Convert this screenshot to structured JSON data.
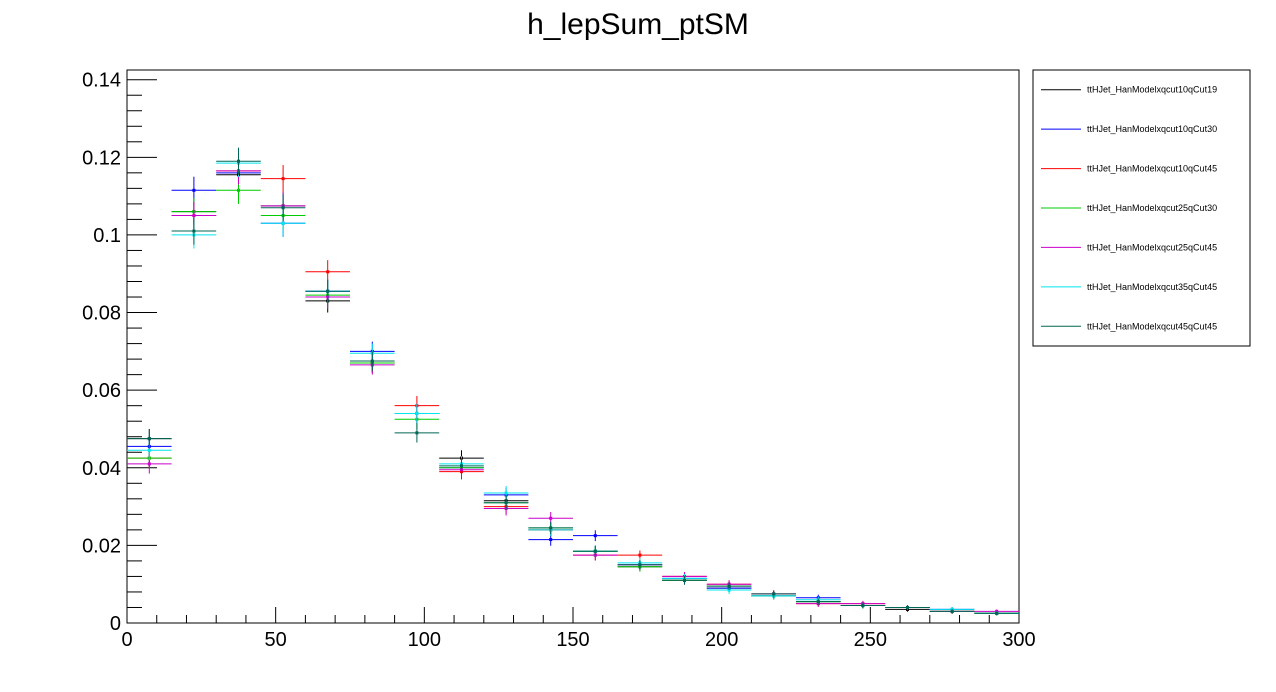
{
  "chart_data": {
    "type": "scatter",
    "title": "h_lepSum_ptSM",
    "xlabel": "",
    "ylabel": "",
    "xlim": [
      0,
      300
    ],
    "ylim": [
      0,
      0.1425
    ],
    "x_ticks": [
      "0",
      "50",
      "100",
      "150",
      "200",
      "250",
      "300"
    ],
    "y_ticks": [
      "0",
      "0.02",
      "0.04",
      "0.06",
      "0.08",
      "0.1",
      "0.12",
      "0.14"
    ],
    "grid": false,
    "legend_position": "top-right outside plot",
    "bin_width": 15,
    "x": [
      7.5,
      22.5,
      37.5,
      52.5,
      67.5,
      82.5,
      97.5,
      112.5,
      127.5,
      142.5,
      157.5,
      172.5,
      187.5,
      202.5,
      217.5,
      232.5,
      247.5,
      262.5,
      277.5,
      292.5
    ],
    "series": [
      {
        "name": "ttHJet_HanModelxqcut10qCut19",
        "color": "#000000",
        "values": [
          0.0475,
          0.106,
          0.1155,
          0.1075,
          0.083,
          0.067,
          0.054,
          0.0425,
          0.0315,
          0.024,
          0.0185,
          0.0145,
          0.011,
          0.009,
          0.007,
          0.0055,
          0.0045,
          0.0035,
          0.003,
          0.0025
        ],
        "errors": [
          0.0025,
          0.0035,
          0.0035,
          0.0035,
          0.003,
          0.0025,
          0.0025,
          0.002,
          0.0018,
          0.0016,
          0.0014,
          0.0012,
          0.0011,
          0.001,
          0.0009,
          0.0008,
          0.0007,
          0.0006,
          0.0006,
          0.0005
        ]
      },
      {
        "name": "ttHJet_HanModelxqcut10qCut30",
        "color": "#0000ff",
        "values": [
          0.0455,
          0.1115,
          0.116,
          0.103,
          0.0855,
          0.07,
          0.054,
          0.04,
          0.033,
          0.0215,
          0.0225,
          0.015,
          0.0115,
          0.009,
          0.007,
          0.0065,
          0.0045,
          0.004,
          0.0035,
          0.0025
        ],
        "errors": [
          0.0025,
          0.0035,
          0.0035,
          0.0035,
          0.003,
          0.0025,
          0.0025,
          0.002,
          0.0018,
          0.0016,
          0.0014,
          0.0012,
          0.0011,
          0.001,
          0.0009,
          0.0008,
          0.0007,
          0.0006,
          0.0006,
          0.0005
        ]
      },
      {
        "name": "ttHJet_HanModelxqcut10qCut45",
        "color": "#ff0000",
        "values": [
          0.0425,
          0.105,
          0.1165,
          0.1145,
          0.0905,
          0.067,
          0.056,
          0.039,
          0.03,
          0.024,
          0.0175,
          0.0175,
          0.012,
          0.01,
          0.0075,
          0.005,
          0.005,
          0.004,
          0.003,
          0.0025
        ],
        "errors": [
          0.0025,
          0.0035,
          0.0035,
          0.0035,
          0.003,
          0.0025,
          0.0025,
          0.002,
          0.0018,
          0.0016,
          0.0014,
          0.0012,
          0.0011,
          0.001,
          0.0009,
          0.0008,
          0.0007,
          0.0006,
          0.0006,
          0.0005
        ]
      },
      {
        "name": "ttHJet_HanModelxqcut25qCut30",
        "color": "#00cc00",
        "values": [
          0.0425,
          0.106,
          0.1115,
          0.105,
          0.0845,
          0.067,
          0.0525,
          0.04,
          0.031,
          0.0245,
          0.0185,
          0.0145,
          0.011,
          0.0095,
          0.007,
          0.0055,
          0.0045,
          0.004,
          0.003,
          0.0025
        ],
        "errors": [
          0.0025,
          0.0035,
          0.0035,
          0.0035,
          0.003,
          0.0025,
          0.0025,
          0.002,
          0.0018,
          0.0016,
          0.0014,
          0.0012,
          0.0011,
          0.001,
          0.0009,
          0.0008,
          0.0007,
          0.0006,
          0.0006,
          0.0005
        ]
      },
      {
        "name": "ttHJet_HanModelxqcut25qCut45",
        "color": "#cc00cc",
        "values": [
          0.041,
          0.105,
          0.1165,
          0.1075,
          0.084,
          0.0665,
          0.054,
          0.0395,
          0.0295,
          0.027,
          0.0175,
          0.015,
          0.012,
          0.01,
          0.0075,
          0.005,
          0.005,
          0.004,
          0.003,
          0.003
        ],
        "errors": [
          0.0025,
          0.0035,
          0.0035,
          0.0035,
          0.003,
          0.0025,
          0.0025,
          0.002,
          0.0018,
          0.0016,
          0.0014,
          0.0012,
          0.0011,
          0.001,
          0.0009,
          0.0008,
          0.0007,
          0.0006,
          0.0006,
          0.0005
        ]
      },
      {
        "name": "ttHJet_HanModelxqcut35qCut45",
        "color": "#00e5ee",
        "values": [
          0.0445,
          0.1,
          0.1185,
          0.103,
          0.0855,
          0.0695,
          0.054,
          0.041,
          0.0335,
          0.024,
          0.0185,
          0.0155,
          0.0115,
          0.0085,
          0.007,
          0.006,
          0.0045,
          0.004,
          0.0035,
          0.0025
        ],
        "errors": [
          0.0025,
          0.0035,
          0.0035,
          0.0035,
          0.003,
          0.0025,
          0.0025,
          0.002,
          0.0018,
          0.0016,
          0.0014,
          0.0012,
          0.0011,
          0.001,
          0.0009,
          0.0008,
          0.0007,
          0.0006,
          0.0006,
          0.0005
        ]
      },
      {
        "name": "ttHJet_HanModelxqcut45qCut45",
        "color": "#006655",
        "values": [
          0.0475,
          0.101,
          0.119,
          0.107,
          0.0855,
          0.0675,
          0.049,
          0.0405,
          0.031,
          0.0245,
          0.0185,
          0.015,
          0.011,
          0.0095,
          0.0075,
          0.0055,
          0.0045,
          0.004,
          0.003,
          0.0025
        ],
        "errors": [
          0.0025,
          0.0035,
          0.0035,
          0.0035,
          0.003,
          0.0025,
          0.0025,
          0.002,
          0.0018,
          0.0016,
          0.0014,
          0.0012,
          0.0011,
          0.001,
          0.0009,
          0.0008,
          0.0007,
          0.0006,
          0.0006,
          0.0005
        ]
      }
    ]
  }
}
